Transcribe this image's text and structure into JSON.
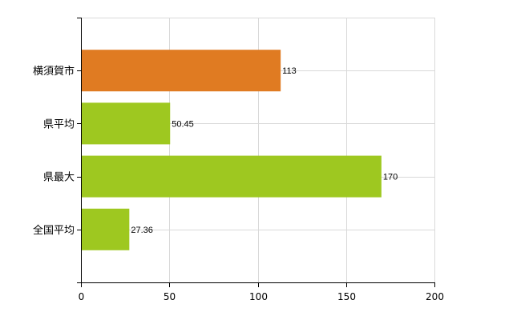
{
  "chart_data": {
    "type": "bar",
    "orientation": "horizontal",
    "categories": [
      "横須賀市",
      "県平均",
      "県最大",
      "全国平均"
    ],
    "values": [
      113,
      50.45,
      170,
      27.36
    ],
    "value_labels": [
      "113",
      "50.45",
      "170",
      "27.36"
    ],
    "bar_colors": [
      "#e07b22",
      "#9ec820",
      "#9ec820",
      "#9ec820"
    ],
    "xlim": [
      0,
      200
    ],
    "x_ticks": [
      0,
      50,
      100,
      150,
      200
    ],
    "title": "",
    "xlabel": "",
    "ylabel": "",
    "grid": true,
    "legend": "none"
  },
  "colors": {
    "highlight": "#e07b22",
    "default_bar": "#9ec820",
    "gridline": "#d9d9d9",
    "axis": "#000000"
  }
}
